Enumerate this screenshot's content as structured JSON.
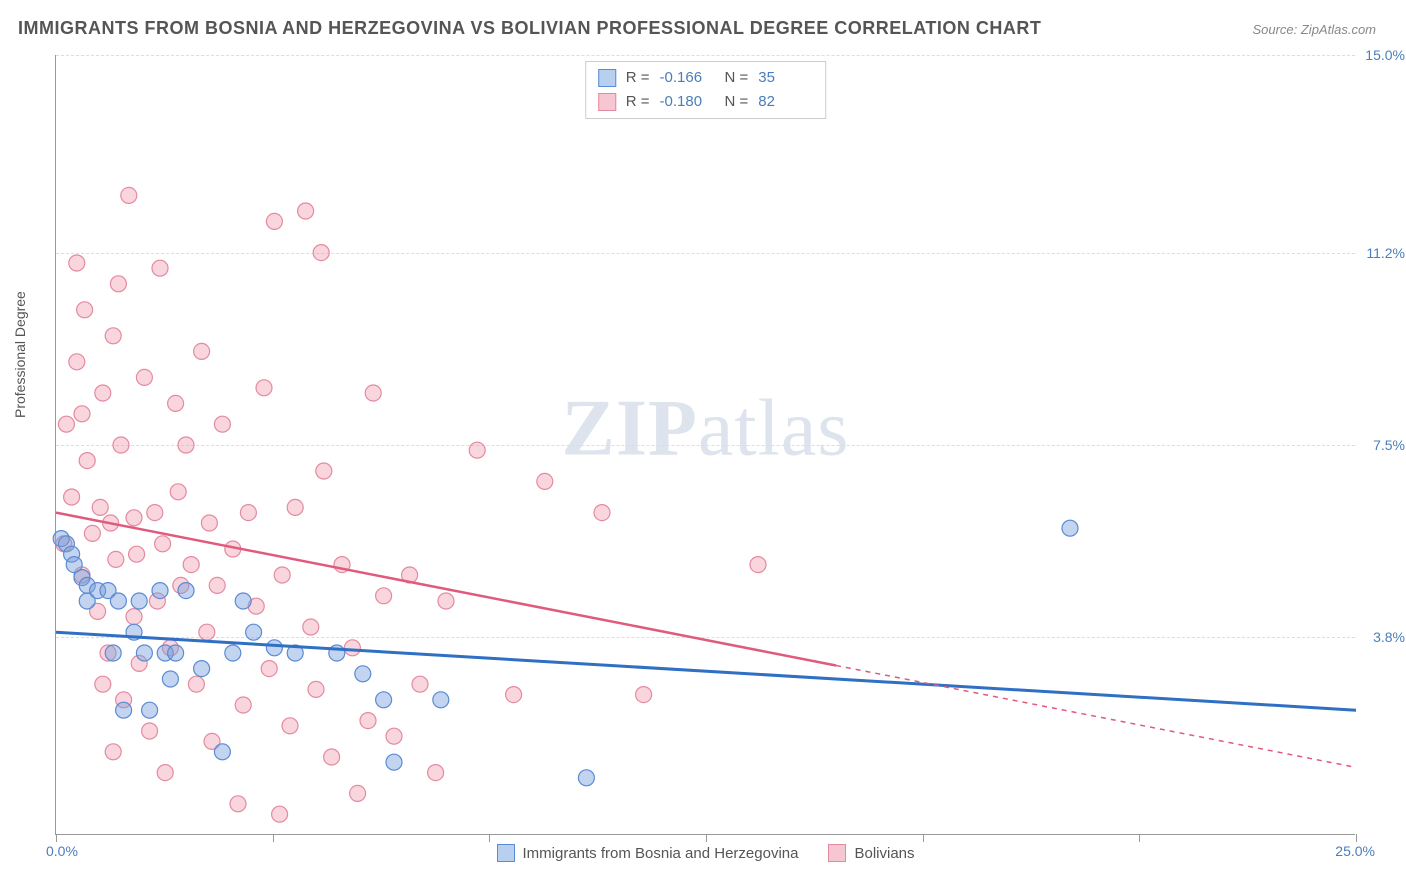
{
  "title": "IMMIGRANTS FROM BOSNIA AND HERZEGOVINA VS BOLIVIAN PROFESSIONAL DEGREE CORRELATION CHART",
  "source": "Source: ZipAtlas.com",
  "watermark": {
    "bold": "ZIP",
    "rest": "atlas"
  },
  "y_axis_title": "Professional Degree",
  "axes": {
    "xlim": [
      0,
      25.0
    ],
    "ylim": [
      0,
      15.0
    ],
    "x_min_label": "0.0%",
    "x_max_label": "25.0%",
    "y_ticks": [
      3.8,
      7.5,
      11.2,
      15.0
    ],
    "y_tick_labels": [
      "3.8%",
      "7.5%",
      "11.2%",
      "15.0%"
    ],
    "x_tick_positions": [
      0,
      4.17,
      8.33,
      12.5,
      16.67,
      20.83,
      25.0
    ],
    "grid_color": "#dddddd",
    "axis_color": "#999999"
  },
  "series": [
    {
      "name": "Immigrants from Bosnia and Herzegovina",
      "color_fill": "rgba(120,160,220,0.45)",
      "color_stroke": "#5b8bd4",
      "swatch_fill": "#b8d0ef",
      "swatch_border": "#5b8bd4",
      "R": "-0.166",
      "N": "35",
      "trend": {
        "x1": 0,
        "y1": 3.9,
        "x2": 25.0,
        "y2": 2.4,
        "solid_until_x": 25.0,
        "color": "#2f6fc4",
        "width": 3
      },
      "points": [
        [
          0.1,
          5.7
        ],
        [
          0.2,
          5.6
        ],
        [
          0.3,
          5.4
        ],
        [
          0.35,
          5.2
        ],
        [
          0.5,
          4.95
        ],
        [
          0.6,
          4.8
        ],
        [
          0.6,
          4.5
        ],
        [
          0.8,
          4.7
        ],
        [
          1.0,
          4.7
        ],
        [
          1.1,
          3.5
        ],
        [
          1.2,
          4.5
        ],
        [
          1.3,
          2.4
        ],
        [
          1.5,
          3.9
        ],
        [
          1.6,
          4.5
        ],
        [
          1.7,
          3.5
        ],
        [
          1.8,
          2.4
        ],
        [
          2.0,
          4.7
        ],
        [
          2.1,
          3.5
        ],
        [
          2.2,
          3.0
        ],
        [
          2.3,
          3.5
        ],
        [
          2.5,
          4.7
        ],
        [
          2.8,
          3.2
        ],
        [
          3.2,
          1.6
        ],
        [
          3.4,
          3.5
        ],
        [
          3.6,
          4.5
        ],
        [
          3.8,
          3.9
        ],
        [
          4.2,
          3.6
        ],
        [
          4.6,
          3.5
        ],
        [
          5.4,
          3.5
        ],
        [
          5.9,
          3.1
        ],
        [
          6.3,
          2.6
        ],
        [
          6.5,
          1.4
        ],
        [
          7.4,
          2.6
        ],
        [
          10.2,
          1.1
        ],
        [
          19.5,
          5.9
        ]
      ]
    },
    {
      "name": "Bolivians",
      "color_fill": "rgba(240,150,170,0.40)",
      "color_stroke": "#e48aa0",
      "swatch_fill": "#f6c6d2",
      "swatch_border": "#e48aa0",
      "R": "-0.180",
      "N": "82",
      "trend": {
        "x1": 0,
        "y1": 6.2,
        "x2": 25.0,
        "y2": 1.3,
        "solid_until_x": 15.0,
        "color": "#e05a7d",
        "width": 2.5
      },
      "points": [
        [
          0.15,
          5.6
        ],
        [
          0.2,
          7.9
        ],
        [
          0.3,
          6.5
        ],
        [
          0.4,
          9.1
        ],
        [
          0.4,
          11.0
        ],
        [
          0.5,
          8.1
        ],
        [
          0.5,
          5.0
        ],
        [
          0.55,
          10.1
        ],
        [
          0.6,
          7.2
        ],
        [
          0.7,
          5.8
        ],
        [
          0.8,
          4.3
        ],
        [
          0.85,
          6.3
        ],
        [
          0.9,
          2.9
        ],
        [
          0.9,
          8.5
        ],
        [
          1.0,
          3.5
        ],
        [
          1.05,
          6.0
        ],
        [
          1.1,
          1.6
        ],
        [
          1.1,
          9.6
        ],
        [
          1.15,
          5.3
        ],
        [
          1.2,
          10.6
        ],
        [
          1.25,
          7.5
        ],
        [
          1.3,
          2.6
        ],
        [
          1.4,
          12.3
        ],
        [
          1.5,
          6.1
        ],
        [
          1.5,
          4.2
        ],
        [
          1.55,
          5.4
        ],
        [
          1.6,
          3.3
        ],
        [
          1.7,
          8.8
        ],
        [
          1.8,
          2.0
        ],
        [
          1.9,
          6.2
        ],
        [
          1.95,
          4.5
        ],
        [
          2.0,
          10.9
        ],
        [
          2.05,
          5.6
        ],
        [
          2.1,
          1.2
        ],
        [
          2.2,
          3.6
        ],
        [
          2.3,
          8.3
        ],
        [
          2.35,
          6.6
        ],
        [
          2.4,
          4.8
        ],
        [
          2.5,
          7.5
        ],
        [
          2.6,
          5.2
        ],
        [
          2.7,
          2.9
        ],
        [
          2.8,
          9.3
        ],
        [
          2.9,
          3.9
        ],
        [
          2.95,
          6.0
        ],
        [
          3.0,
          1.8
        ],
        [
          3.1,
          4.8
        ],
        [
          3.2,
          7.9
        ],
        [
          3.4,
          5.5
        ],
        [
          3.5,
          0.6
        ],
        [
          3.6,
          2.5
        ],
        [
          3.7,
          6.2
        ],
        [
          3.85,
          4.4
        ],
        [
          4.0,
          8.6
        ],
        [
          4.1,
          3.2
        ],
        [
          4.2,
          11.8
        ],
        [
          4.3,
          0.4
        ],
        [
          4.35,
          5.0
        ],
        [
          4.5,
          2.1
        ],
        [
          4.6,
          6.3
        ],
        [
          4.8,
          12.0
        ],
        [
          4.9,
          4.0
        ],
        [
          5.0,
          2.8
        ],
        [
          5.1,
          11.2
        ],
        [
          5.15,
          7.0
        ],
        [
          5.3,
          1.5
        ],
        [
          5.5,
          5.2
        ],
        [
          5.7,
          3.6
        ],
        [
          5.8,
          0.8
        ],
        [
          6.0,
          2.2
        ],
        [
          6.1,
          8.5
        ],
        [
          6.3,
          4.6
        ],
        [
          6.5,
          1.9
        ],
        [
          6.8,
          5.0
        ],
        [
          7.0,
          2.9
        ],
        [
          7.3,
          1.2
        ],
        [
          7.5,
          4.5
        ],
        [
          8.1,
          7.4
        ],
        [
          8.8,
          2.7
        ],
        [
          9.4,
          6.8
        ],
        [
          10.5,
          6.2
        ],
        [
          11.3,
          2.7
        ],
        [
          13.5,
          5.2
        ]
      ]
    }
  ],
  "marker_radius": 8,
  "bottom_legend_items": [
    {
      "series_index": 0
    },
    {
      "series_index": 1
    }
  ],
  "colors": {
    "tick_label": "#4a7ebb",
    "title": "#555555",
    "source": "#888888"
  }
}
